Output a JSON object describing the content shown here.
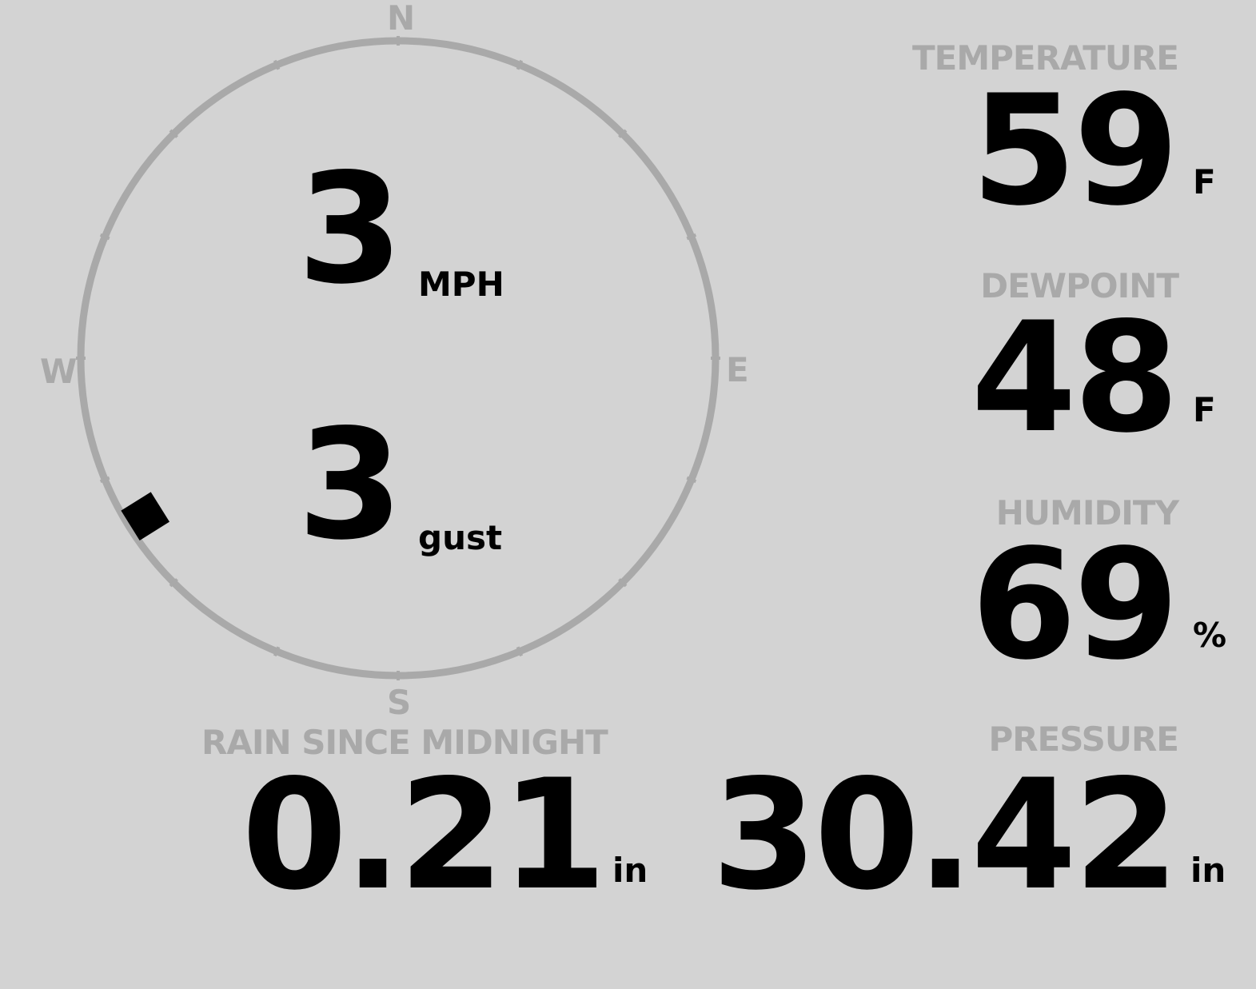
{
  "wind": {
    "speed": "3",
    "speed_unit": "MPH",
    "gust": "3",
    "gust_unit": "gust",
    "direction_deg": 238,
    "cardinals": {
      "n": "N",
      "e": "E",
      "s": "S",
      "w": "W"
    }
  },
  "temperature": {
    "label": "TEMPERATURE",
    "value": "59",
    "unit": "F"
  },
  "dewpoint": {
    "label": "DEWPOINT",
    "value": "48",
    "unit": "F"
  },
  "humidity": {
    "label": "HUMIDITY",
    "value": "69",
    "unit": "%"
  },
  "rain": {
    "label": "RAIN SINCE MIDNIGHT",
    "value": "0.21",
    "unit": "in"
  },
  "pressure": {
    "label": "PRESSURE",
    "value": "30.42",
    "unit": "in"
  },
  "colors": {
    "background": "#d3d3d3",
    "label": "#a9a9a9",
    "value": "#000000",
    "compass": "#a9a9a9"
  }
}
